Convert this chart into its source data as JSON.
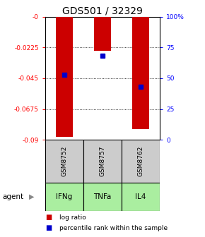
{
  "title": "GDS501 / 32329",
  "samples": [
    "GSM8752",
    "GSM8757",
    "GSM8762"
  ],
  "agents": [
    "IFNg",
    "TNFa",
    "IL4"
  ],
  "log_ratios": [
    -0.088,
    -0.025,
    -0.082
  ],
  "percentile_ranks": [
    53,
    68,
    43
  ],
  "ylim_left": [
    -0.09,
    0.0
  ],
  "ylim_right": [
    0,
    100
  ],
  "left_ticks": [
    0.0,
    -0.0225,
    -0.045,
    -0.0675,
    -0.09
  ],
  "left_tick_labels": [
    "-0",
    "-0.0225",
    "-0.045",
    "-0.0675",
    "-0.09"
  ],
  "right_ticks": [
    0,
    25,
    50,
    75,
    100
  ],
  "right_tick_labels": [
    "0",
    "25",
    "50",
    "75",
    "100%"
  ],
  "bar_color": "#cc0000",
  "dot_color": "#0000cc",
  "sample_bg_color": "#cccccc",
  "agent_bg_color": "#aaeea0",
  "legend_bar_label": "log ratio",
  "legend_dot_label": "percentile rank within the sample",
  "agent_label": "agent",
  "grid_ticks": [
    -0.0225,
    -0.045,
    -0.0675
  ]
}
